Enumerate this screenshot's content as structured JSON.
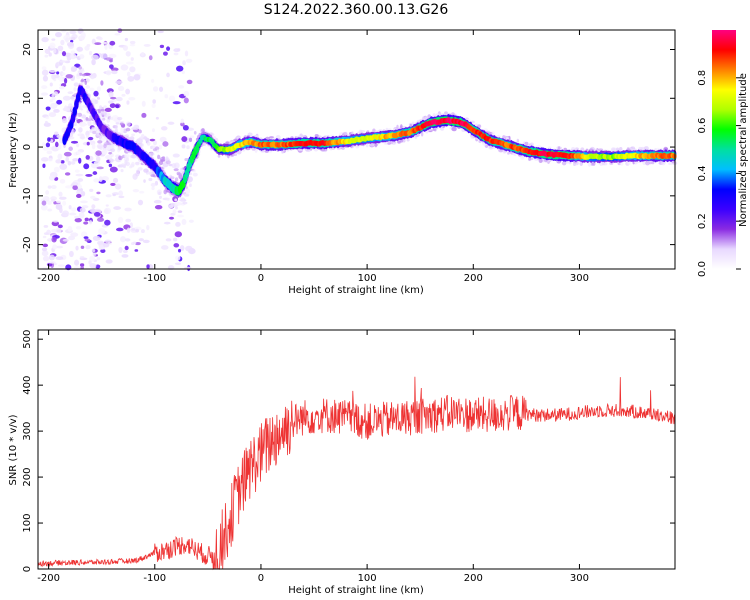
{
  "title": "S124.2022.360.00.13.G26",
  "chart_data": [
    {
      "type": "heatmap",
      "xlabel": "Height of straight line (km)",
      "ylabel": "Frequency (Hz)",
      "xlim": [
        -210,
        390
      ],
      "ylim": [
        -25,
        24
      ],
      "xticks": [
        -200,
        -100,
        0,
        100,
        200,
        300
      ],
      "yticks": [
        -20,
        -10,
        0,
        10,
        20
      ],
      "colorbar": {
        "label": "Normalized spectral amplitude",
        "range": [
          0.0,
          1.0
        ],
        "ticks": [
          "0.0",
          "0.2",
          "0.4",
          "0.6",
          "0.8"
        ],
        "colormap": [
          "#ffffff",
          "#e8d8ff",
          "#8a2be2",
          "#3a00ff",
          "#0000ff",
          "#00bfff",
          "#00e0a0",
          "#00ff00",
          "#b0ff00",
          "#ffff00",
          "#ff8000",
          "#ff0000",
          "#ff0080"
        ]
      },
      "ridge": {
        "x": [
          -185,
          -178,
          -170,
          -160,
          -150,
          -140,
          -130,
          -120,
          -110,
          -100,
          -90,
          -82,
          -77,
          -72,
          -68,
          -62,
          -55,
          -48,
          -40,
          -30,
          -20,
          -10,
          0,
          20,
          40,
          60,
          80,
          100,
          120,
          140,
          160,
          175,
          190,
          200,
          215,
          230,
          250,
          270,
          290,
          310,
          330,
          350,
          370,
          390
        ],
        "y": [
          1.5,
          5,
          12,
          8,
          4,
          2,
          1,
          0,
          -2,
          -4,
          -7,
          -8.5,
          -9,
          -7,
          -4,
          -1,
          2,
          1.5,
          -0.5,
          -0.5,
          0.5,
          1,
          0.5,
          0.5,
          0.8,
          0.8,
          1.2,
          1.8,
          2.2,
          3,
          5,
          5.5,
          5,
          3.5,
          1.5,
          0.5,
          -0.8,
          -1.5,
          -1.8,
          -2,
          -2,
          -1.8,
          -1.8,
          -1.8
        ],
        "amplitude": [
          0.3,
          0.3,
          0.3,
          0.25,
          0.2,
          0.25,
          0.3,
          0.3,
          0.3,
          0.3,
          0.45,
          0.5,
          0.55,
          0.55,
          0.5,
          0.55,
          0.5,
          0.55,
          0.6,
          0.7,
          0.75,
          0.8,
          0.85,
          0.85,
          0.9,
          0.9,
          0.75,
          0.7,
          0.8,
          0.85,
          0.95,
          0.97,
          0.95,
          0.9,
          0.9,
          0.85,
          0.9,
          0.95,
          0.92,
          0.7,
          0.65,
          0.75,
          0.85,
          0.85
        ]
      }
    },
    {
      "type": "line",
      "xlabel": "Height of straight line (km)",
      "ylabel": "SNR (10 * v/v)",
      "xlim": [
        -210,
        390
      ],
      "ylim": [
        0,
        520
      ],
      "xticks": [
        -200,
        -100,
        0,
        100,
        200,
        300
      ],
      "yticks": [
        0,
        100,
        200,
        300,
        400,
        500
      ],
      "series": [
        {
          "color": "#ee3333",
          "x": [
            -210,
            -180,
            -150,
            -120,
            -110,
            -100,
            -90,
            -80,
            -70,
            -60,
            -50,
            -45,
            -40,
            -35,
            -30,
            -25,
            -20,
            -10,
            0,
            10,
            20,
            30,
            40,
            60,
            80,
            100,
            120,
            140,
            160,
            180,
            200,
            220,
            240,
            260,
            280,
            300,
            320,
            340,
            360,
            380,
            390
          ],
          "y": [
            12,
            14,
            15,
            18,
            25,
            35,
            40,
            50,
            55,
            40,
            28,
            30,
            40,
            70,
            100,
            140,
            170,
            220,
            250,
            280,
            300,
            320,
            330,
            335,
            330,
            320,
            325,
            330,
            335,
            340,
            335,
            335,
            340,
            335,
            335,
            340,
            345,
            345,
            340,
            335,
            325
          ]
        }
      ]
    }
  ]
}
